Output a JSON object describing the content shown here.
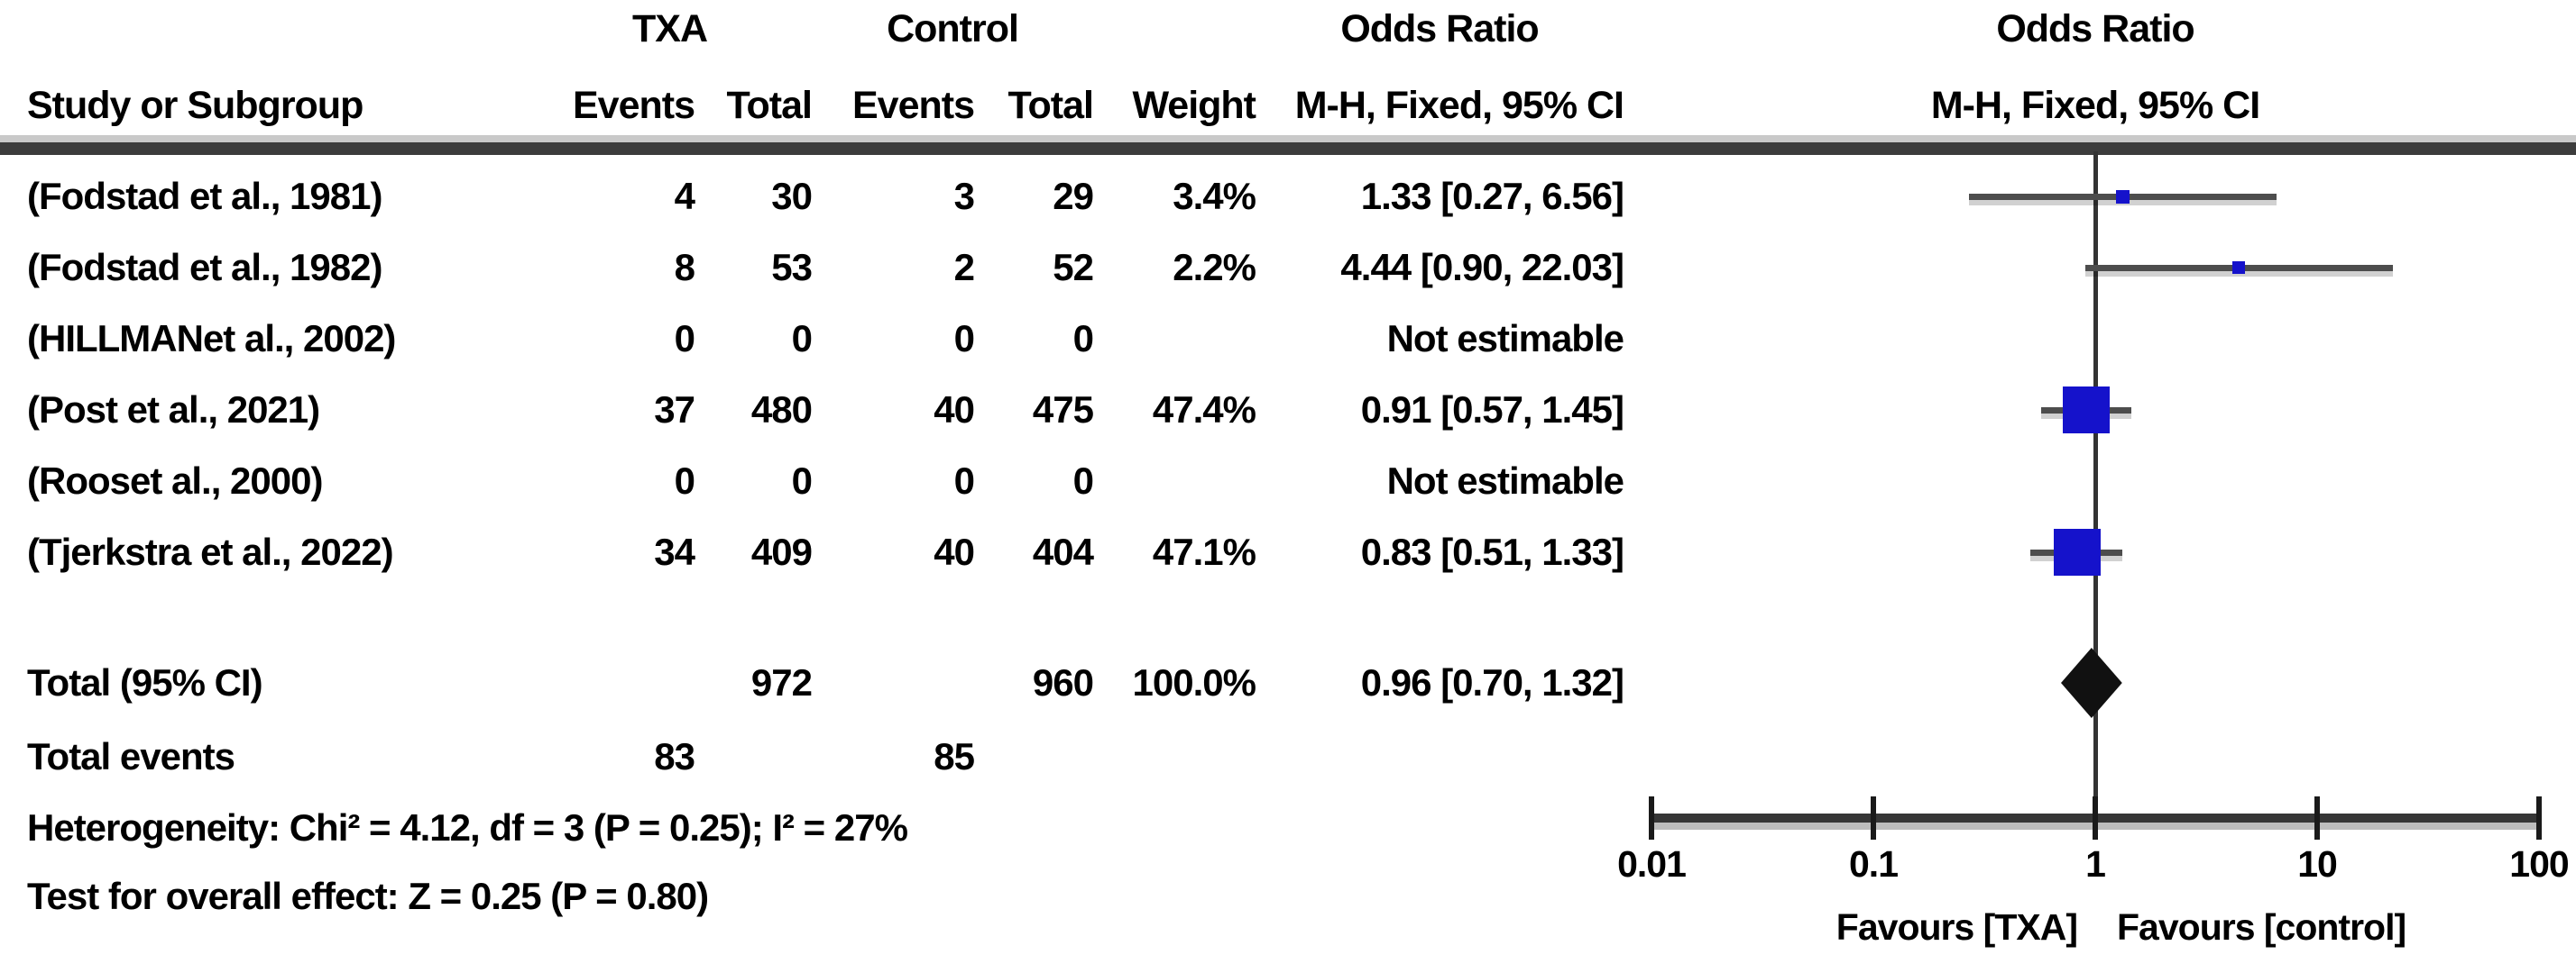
{
  "colors": {
    "square_blue": "#1512cb",
    "diamond_black": "#111111",
    "line_gray": "#4d4d4d",
    "axis_gray": "#363636",
    "separator_dark": "#3c3c3c",
    "separator_light": "#c9c9c9"
  },
  "table": {
    "group_headers": {
      "txa": "TXA",
      "control": "Control",
      "odds_ratio_left": "Odds Ratio",
      "odds_ratio_right": "Odds Ratio"
    },
    "col_headers": {
      "study": "Study or Subgroup",
      "txa_events": "Events",
      "txa_total": "Total",
      "ctl_events": "Events",
      "ctl_total": "Total",
      "weight": "Weight",
      "or_ci": "M-H, Fixed, 95% CI"
    },
    "plot_subheader": "M-H, Fixed, 95% CI",
    "rows": [
      {
        "study": "(Fodstad et al., 1981)",
        "txa_events": "4",
        "txa_total": "30",
        "ctl_events": "3",
        "ctl_total": "29",
        "weight": "3.4%",
        "or_ci": "1.33 [0.27, 6.56]"
      },
      {
        "study": "(Fodstad et al., 1982)",
        "txa_events": "8",
        "txa_total": "53",
        "ctl_events": "2",
        "ctl_total": "52",
        "weight": "2.2%",
        "or_ci": "4.44 [0.90, 22.03]"
      },
      {
        "study": "(HILLMANet al., 2002)",
        "txa_events": "0",
        "txa_total": "0",
        "ctl_events": "0",
        "ctl_total": "0",
        "weight": "",
        "or_ci": "Not estimable"
      },
      {
        "study": "(Post et al., 2021)",
        "txa_events": "37",
        "txa_total": "480",
        "ctl_events": "40",
        "ctl_total": "475",
        "weight": "47.4%",
        "or_ci": "0.91 [0.57, 1.45]"
      },
      {
        "study": "(Rooset al., 2000)",
        "txa_events": "0",
        "txa_total": "0",
        "ctl_events": "0",
        "ctl_total": "0",
        "weight": "",
        "or_ci": "Not estimable"
      },
      {
        "study": "(Tjerkstra et al., 2022)",
        "txa_events": "34",
        "txa_total": "409",
        "ctl_events": "40",
        "ctl_total": "404",
        "weight": "47.1%",
        "or_ci": "0.83 [0.51, 1.33]"
      }
    ],
    "total_row": {
      "label": "Total (95% CI)",
      "txa_total": "972",
      "ctl_total": "960",
      "weight": "100.0%",
      "or_ci": "0.96 [0.70, 1.32]"
    },
    "total_events": {
      "label": "Total events",
      "txa": "83",
      "ctl": "85"
    },
    "heterogeneity": "Heterogeneity: Chi² = 4.12, df = 3 (P = 0.25); I² = 27%",
    "overall_effect": "Test for overall effect: Z = 0.25 (P = 0.80)"
  },
  "chart_data": {
    "type": "forest",
    "x_scale": "log10",
    "x_range": [
      0.01,
      100
    ],
    "x_ticks": [
      0.01,
      0.1,
      1,
      10,
      100
    ],
    "x_tick_labels": [
      "0.01",
      "0.1",
      "1",
      "10",
      "100"
    ],
    "reference_line": 1,
    "favours_left": "Favours [TXA]",
    "favours_right": "Favours [control]",
    "effect_measure": "Odds Ratio, M-H, Fixed, 95% CI",
    "studies": [
      {
        "label": "(Fodstad et al., 1981)",
        "or": 1.33,
        "ci_low": 0.27,
        "ci_high": 6.56,
        "weight_pct": 3.4
      },
      {
        "label": "(Fodstad et al., 1982)",
        "or": 4.44,
        "ci_low": 0.9,
        "ci_high": 22.03,
        "weight_pct": 2.2
      },
      {
        "label": "(HILLMANet al., 2002)",
        "or": null,
        "ci_low": null,
        "ci_high": null,
        "weight_pct": null,
        "note": "Not estimable"
      },
      {
        "label": "(Post et al., 2021)",
        "or": 0.91,
        "ci_low": 0.57,
        "ci_high": 1.45,
        "weight_pct": 47.4
      },
      {
        "label": "(Rooset al., 2000)",
        "or": null,
        "ci_low": null,
        "ci_high": null,
        "weight_pct": null,
        "note": "Not estimable"
      },
      {
        "label": "(Tjerkstra et al., 2022)",
        "or": 0.83,
        "ci_low": 0.51,
        "ci_high": 1.33,
        "weight_pct": 47.1
      }
    ],
    "total": {
      "or": 0.96,
      "ci_low": 0.7,
      "ci_high": 1.32,
      "weight_pct": 100.0
    }
  }
}
